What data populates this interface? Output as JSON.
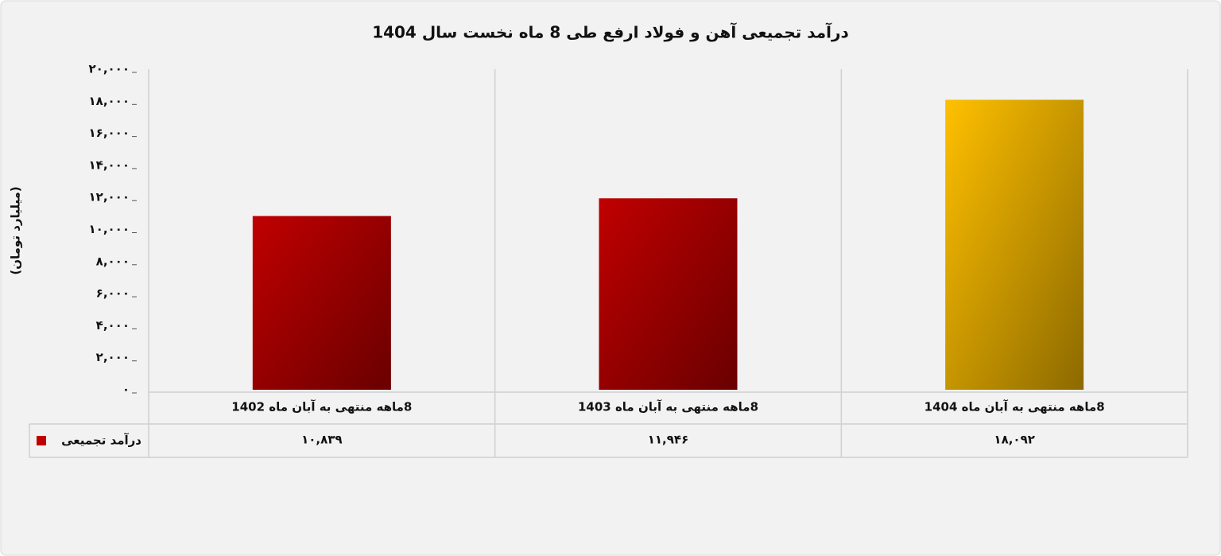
{
  "chart_data": {
    "type": "bar",
    "title": "درآمد تجمیعی آهن و فولاد ارفع طی 8 ماه نخست سال 1404",
    "y_label": "(میلیارد تومان)",
    "categories": [
      "8ماهه منتهی به آبان ماه 1402",
      "8ماهه منتهی به آبان ماه 1403",
      "8ماهه منتهی به آبان ماه 1404"
    ],
    "series": [
      {
        "name": "درآمد تجمیعی",
        "color": "#c00000",
        "colors": [
          "#c00000",
          "#c00000",
          "#ffc000"
        ],
        "values": [
          10839,
          11946,
          18092
        ],
        "value_labels": [
          "۱۰,۸۳۹",
          "۱۱,۹۴۶",
          "۱۸,۰۹۲"
        ]
      }
    ],
    "ylim": [
      0,
      20000
    ],
    "yticks": [
      {
        "value": 0,
        "label": "۰"
      },
      {
        "value": 2000,
        "label": "۲,۰۰۰"
      },
      {
        "value": 4000,
        "label": "۴,۰۰۰"
      },
      {
        "value": 6000,
        "label": "۶,۰۰۰"
      },
      {
        "value": 8000,
        "label": "۸,۰۰۰"
      },
      {
        "value": 10000,
        "label": "۱۰,۰۰۰"
      },
      {
        "value": 12000,
        "label": "۱۲,۰۰۰"
      },
      {
        "value": 14000,
        "label": "۱۴,۰۰۰"
      },
      {
        "value": 16000,
        "label": "۱۶,۰۰۰"
      },
      {
        "value": 18000,
        "label": "۱۸,۰۰۰"
      },
      {
        "value": 20000,
        "label": "۲۰,۰۰۰"
      }
    ],
    "grid": true
  }
}
